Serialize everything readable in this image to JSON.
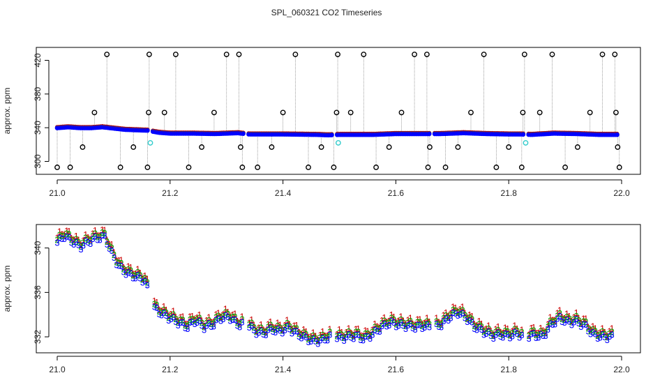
{
  "figure": {
    "title": "SPL_060321  CO2 Timeseries"
  },
  "colors": {
    "marker_black": "#000000",
    "series1_red": "#cc0000",
    "series2_green": "#00aa00",
    "series3_blue": "#0000ff",
    "cyan": "#33cccc",
    "grey_line": "#888888"
  },
  "chart_data": [
    {
      "type": "scatter",
      "title": "SPL_060321  CO2 Timeseries",
      "xlabel": "",
      "ylabel": "approx. ppm",
      "xlim": [
        21.0,
        22.0
      ],
      "ylim": [
        288,
        432
      ],
      "xticks": [
        21.0,
        21.2,
        21.4,
        21.6,
        21.8,
        22.0
      ],
      "xtick_labels": [
        "21.0",
        "21.2",
        "21.4",
        "21.6",
        "21.8",
        "22.0"
      ],
      "yticks": [
        300,
        340,
        380,
        420
      ],
      "ytick_labels": [
        "300",
        "340",
        "380",
        "420"
      ],
      "grid": false,
      "baseline": [
        [
          21.0,
          340.0
        ],
        [
          21.02,
          341.0
        ],
        [
          21.04,
          340.0
        ],
        [
          21.06,
          340.0
        ],
        [
          21.08,
          341.0
        ],
        [
          21.1,
          339.5
        ],
        [
          21.12,
          338.0
        ],
        [
          21.14,
          337.5
        ],
        [
          21.16,
          337.0
        ],
        [
          21.18,
          334.5
        ],
        [
          21.2,
          333.5
        ],
        [
          21.24,
          333.5
        ],
        [
          21.28,
          333.0
        ],
        [
          21.32,
          334.0
        ],
        [
          21.34,
          332.5
        ],
        [
          21.4,
          332.5
        ],
        [
          21.46,
          332.0
        ],
        [
          21.48,
          331.5
        ],
        [
          21.5,
          332.0
        ],
        [
          21.56,
          332.0
        ],
        [
          21.6,
          333.0
        ],
        [
          21.66,
          333.0
        ],
        [
          21.68,
          333.0
        ],
        [
          21.72,
          334.0
        ],
        [
          21.76,
          333.0
        ],
        [
          21.8,
          332.5
        ],
        [
          21.82,
          332.5
        ],
        [
          21.84,
          332.0
        ],
        [
          21.88,
          333.5
        ],
        [
          21.92,
          333.0
        ],
        [
          21.96,
          332.0
        ],
        [
          21.99,
          332.0
        ]
      ],
      "gaps": [
        21.165,
        21.335,
        21.49,
        21.665,
        21.83
      ],
      "spike_markers": [
        [
          21.0,
          293
        ],
        [
          21.023,
          293
        ],
        [
          21.045,
          317
        ],
        [
          21.066,
          358
        ],
        [
          21.088,
          427
        ],
        [
          21.112,
          293
        ],
        [
          21.135,
          317
        ],
        [
          21.16,
          293
        ],
        [
          21.162,
          358
        ],
        [
          21.163,
          427
        ],
        [
          21.19,
          358
        ],
        [
          21.21,
          427
        ],
        [
          21.233,
          293
        ],
        [
          21.256,
          317
        ],
        [
          21.278,
          358
        ],
        [
          21.3,
          427
        ],
        [
          21.322,
          427
        ],
        [
          21.325,
          317
        ],
        [
          21.328,
          293
        ],
        [
          21.355,
          293
        ],
        [
          21.38,
          317
        ],
        [
          21.4,
          358
        ],
        [
          21.422,
          427
        ],
        [
          21.445,
          293
        ],
        [
          21.468,
          317
        ],
        [
          21.49,
          293
        ],
        [
          21.495,
          358
        ],
        [
          21.497,
          427
        ],
        [
          21.52,
          358
        ],
        [
          21.543,
          427
        ],
        [
          21.565,
          293
        ],
        [
          21.588,
          317
        ],
        [
          21.61,
          358
        ],
        [
          21.633,
          427
        ],
        [
          21.655,
          427
        ],
        [
          21.657,
          293
        ],
        [
          21.66,
          317
        ],
        [
          21.688,
          293
        ],
        [
          21.71,
          317
        ],
        [
          21.733,
          358
        ],
        [
          21.756,
          427
        ],
        [
          21.778,
          293
        ],
        [
          21.8,
          317
        ],
        [
          21.823,
          293
        ],
        [
          21.825,
          358
        ],
        [
          21.828,
          427
        ],
        [
          21.855,
          358
        ],
        [
          21.877,
          427
        ],
        [
          21.9,
          293
        ],
        [
          21.922,
          317
        ],
        [
          21.944,
          358
        ],
        [
          21.966,
          427
        ],
        [
          21.988,
          427
        ],
        [
          21.99,
          358
        ],
        [
          21.993,
          317
        ],
        [
          21.996,
          293
        ]
      ],
      "cyan_points": [
        [
          21.165,
          322
        ],
        [
          21.498,
          322
        ],
        [
          21.83,
          322
        ]
      ]
    },
    {
      "type": "scatter",
      "title": "",
      "xlabel": "",
      "ylabel": "approx. ppm",
      "xlim": [
        21.0,
        22.0
      ],
      "ylim": [
        331.0,
        341.8
      ],
      "xticks": [
        21.0,
        21.2,
        21.4,
        21.6,
        21.8,
        22.0
      ],
      "xtick_labels": [
        "21.0",
        "21.2",
        "21.4",
        "21.6",
        "21.8",
        "22.0"
      ],
      "yticks": [
        332,
        336,
        340
      ],
      "ytick_labels": [
        "332",
        "336",
        "340"
      ],
      "grid": false,
      "series_labels": [
        "1",
        "2",
        "3"
      ],
      "baseline": [
        [
          21.0,
          340.6
        ],
        [
          21.012,
          341.2
        ],
        [
          21.025,
          340.8
        ],
        [
          21.04,
          340.2
        ],
        [
          21.055,
          340.7
        ],
        [
          21.07,
          341.0
        ],
        [
          21.085,
          341.1
        ],
        [
          21.095,
          339.8
        ],
        [
          21.11,
          338.4
        ],
        [
          21.125,
          337.8
        ],
        [
          21.14,
          337.5
        ],
        [
          21.155,
          337.2
        ],
        [
          21.162,
          336.2
        ],
        [
          21.17,
          334.8
        ],
        [
          21.185,
          334.2
        ],
        [
          21.2,
          333.8
        ],
        [
          21.215,
          333.4
        ],
        [
          21.23,
          333.0
        ],
        [
          21.245,
          333.6
        ],
        [
          21.26,
          333.0
        ],
        [
          21.275,
          333.2
        ],
        [
          21.29,
          333.8
        ],
        [
          21.305,
          333.9
        ],
        [
          21.32,
          333.2
        ],
        [
          21.335,
          333.4
        ],
        [
          21.35,
          332.6
        ],
        [
          21.365,
          332.4
        ],
        [
          21.38,
          332.8
        ],
        [
          21.395,
          332.6
        ],
        [
          21.41,
          332.9
        ],
        [
          21.425,
          332.4
        ],
        [
          21.44,
          332.0
        ],
        [
          21.455,
          331.7
        ],
        [
          21.47,
          331.8
        ],
        [
          21.485,
          332.2
        ],
        [
          21.5,
          332.0
        ],
        [
          21.515,
          332.1
        ],
        [
          21.53,
          332.2
        ],
        [
          21.545,
          331.9
        ],
        [
          21.56,
          332.4
        ],
        [
          21.575,
          333.0
        ],
        [
          21.59,
          333.4
        ],
        [
          21.605,
          333.2
        ],
        [
          21.62,
          333.1
        ],
        [
          21.635,
          333.0
        ],
        [
          21.65,
          333.1
        ],
        [
          21.665,
          332.9
        ],
        [
          21.68,
          333.2
        ],
        [
          21.695,
          333.9
        ],
        [
          21.71,
          334.3
        ],
        [
          21.725,
          333.8
        ],
        [
          21.74,
          333.0
        ],
        [
          21.755,
          332.6
        ],
        [
          21.77,
          332.2
        ],
        [
          21.785,
          332.3
        ],
        [
          21.8,
          332.2
        ],
        [
          21.815,
          332.4
        ],
        [
          21.83,
          332.1
        ],
        [
          21.845,
          332.3
        ],
        [
          21.86,
          332.1
        ],
        [
          21.875,
          333.2
        ],
        [
          21.89,
          333.8
        ],
        [
          21.905,
          333.4
        ],
        [
          21.92,
          333.5
        ],
        [
          21.935,
          333.1
        ],
        [
          21.95,
          332.3
        ],
        [
          21.965,
          332.1
        ],
        [
          21.98,
          332.1
        ]
      ],
      "gaps": [
        21.165,
        21.335,
        21.49,
        21.665,
        21.83
      ]
    }
  ]
}
